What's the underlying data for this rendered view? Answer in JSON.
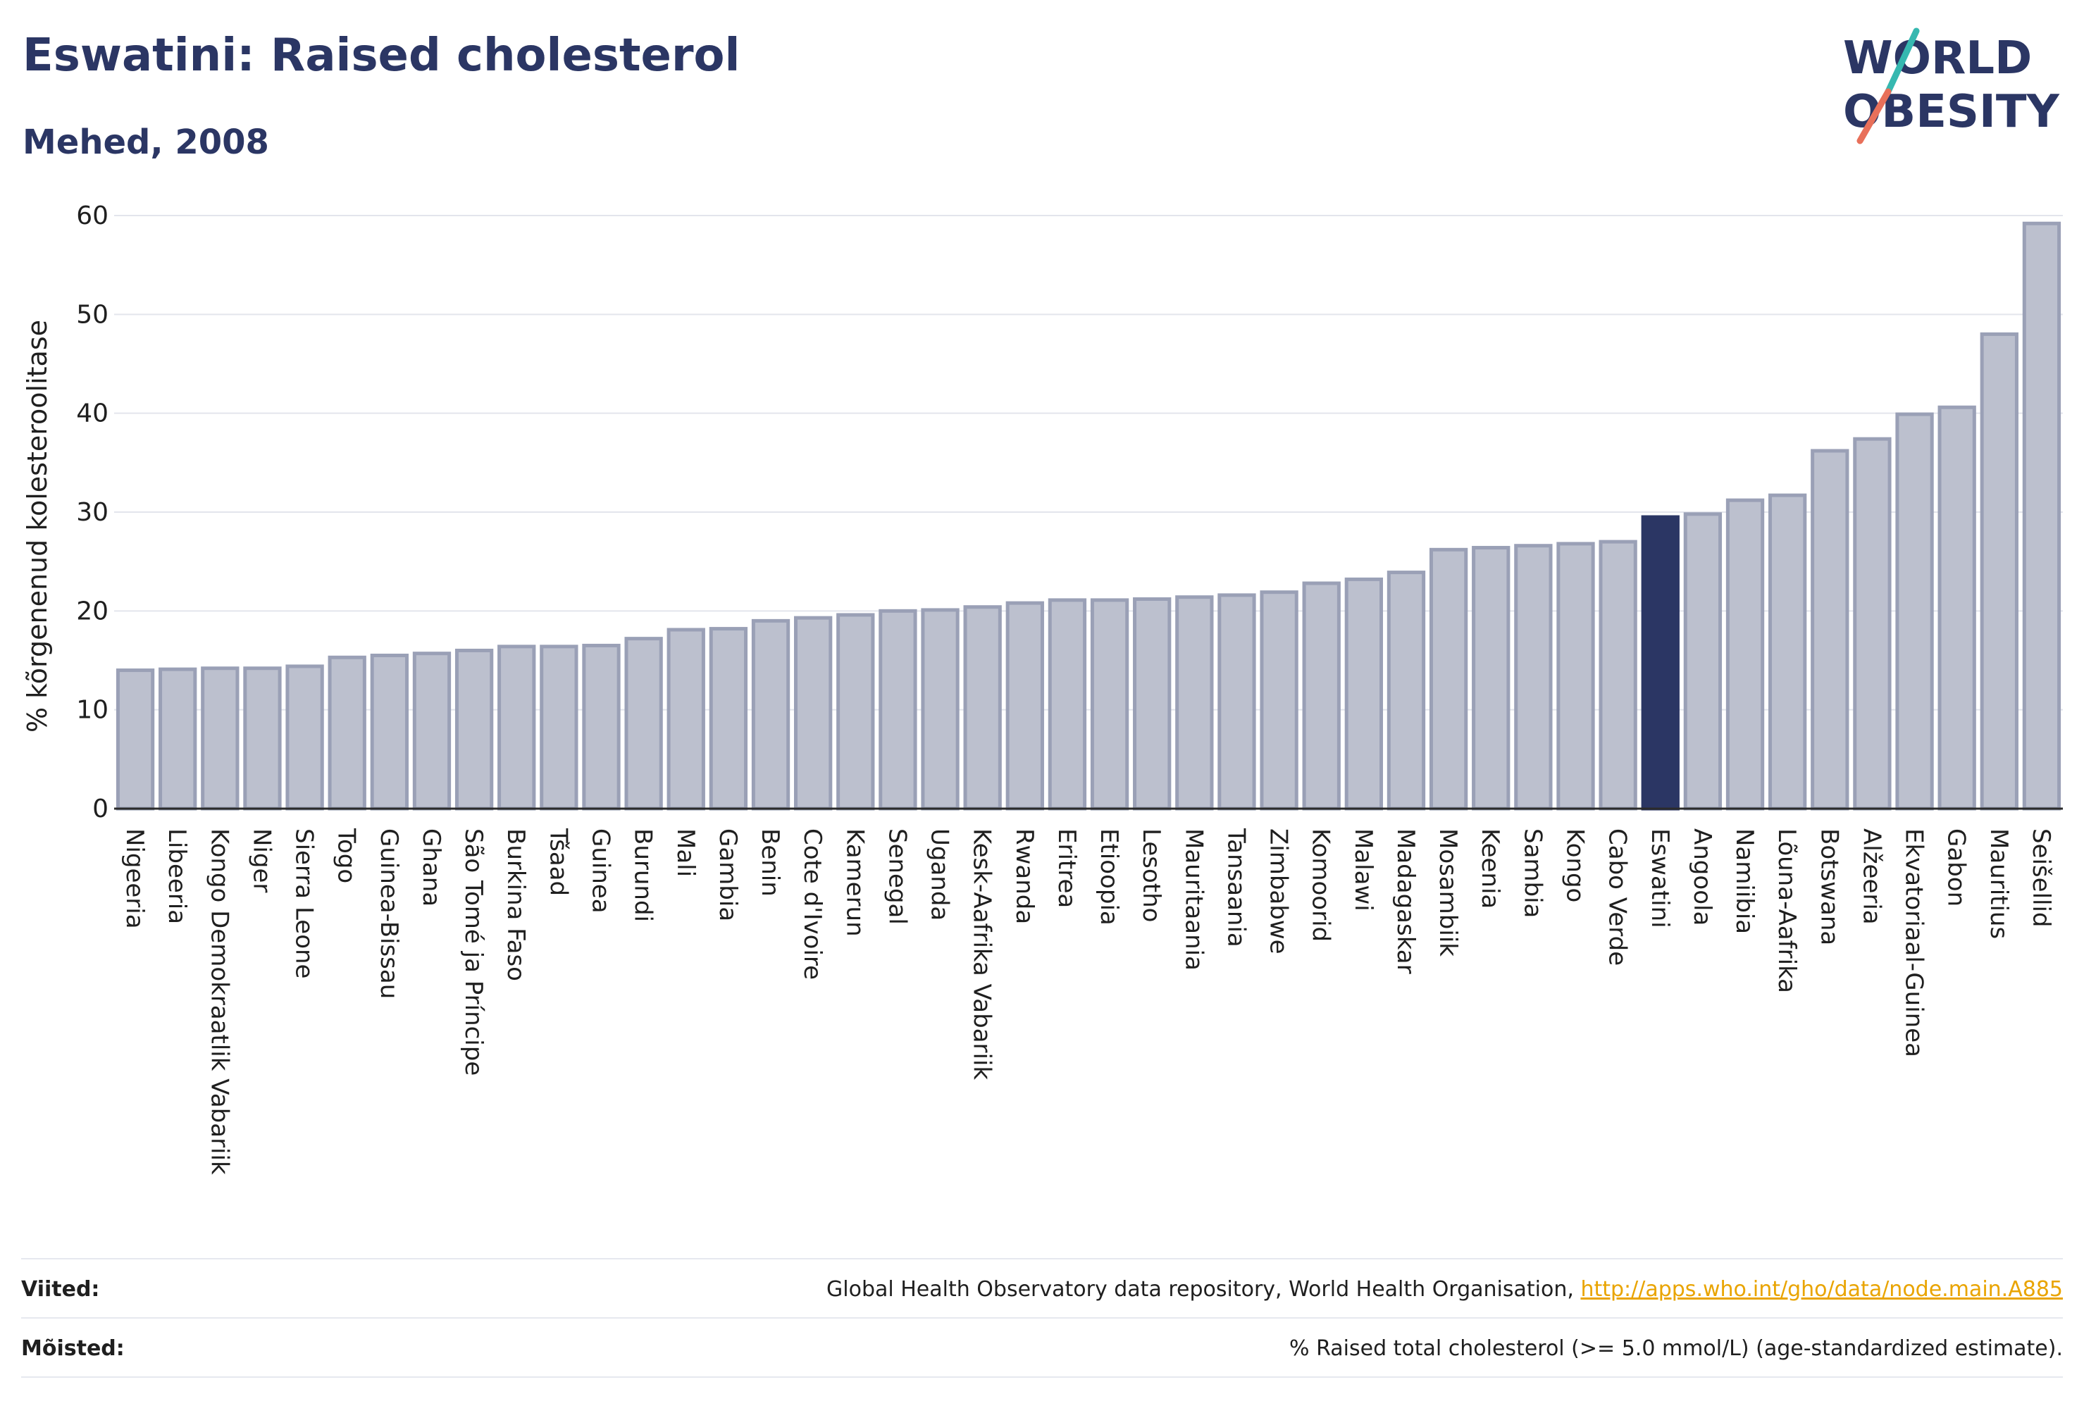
{
  "header": {
    "title": "Eswatini: Raised cholesterol",
    "subtitle": "Mehed, 2008"
  },
  "logo": {
    "line1": "WORLD",
    "line2": "OBESITY",
    "text_color": "#2b3664",
    "slash_color_top": "#36b8b0",
    "slash_color_bottom": "#e8705a"
  },
  "chart_data": {
    "type": "bar",
    "ylabel": "% kõrgenenud kolesteroolitase",
    "xlabel": "",
    "ylim": [
      0,
      60
    ],
    "yticks": [
      0,
      10,
      20,
      30,
      40,
      50,
      60
    ],
    "grid": true,
    "highlight": "Eswatini",
    "bar_color": "#bcc0ce",
    "bar_border_color": "#9aa0b6",
    "highlight_color": "#2b3664",
    "categories": [
      "Nigeeria",
      "Libeeria",
      "Kongo Demokraatlik Vabariik",
      "Niger",
      "Sierra Leone",
      "Togo",
      "Guinea-Bissau",
      "Ghana",
      "São Tomé ja Príncipe",
      "Burkina Faso",
      "Tšaad",
      "Guinea",
      "Burundi",
      "Mali",
      "Gambia",
      "Benin",
      "Cote d'Ivoire",
      "Kamerun",
      "Senegal",
      "Uganda",
      "Kesk-Aafrika Vabariik",
      "Rwanda",
      "Eritrea",
      "Etioopia",
      "Lesotho",
      "Mauritaania",
      "Tansaania",
      "Zimbabwe",
      "Komoorid",
      "Malawi",
      "Madagaskar",
      "Mosambiik",
      "Keenia",
      "Sambia",
      "Kongo",
      "Cabo Verde",
      "Eswatini",
      "Angoola",
      "Namiibia",
      "Lõuna-Aafrika",
      "Botswana",
      "Alžeeria",
      "Ekvatoriaal-Guinea",
      "Gabon",
      "Mauritius",
      "Seišellid"
    ],
    "values": [
      14.0,
      14.1,
      14.2,
      14.2,
      14.4,
      15.3,
      15.5,
      15.7,
      16.0,
      16.4,
      16.4,
      16.5,
      17.2,
      18.1,
      18.2,
      19.0,
      19.3,
      19.6,
      20.0,
      20.1,
      20.4,
      20.8,
      21.1,
      21.1,
      21.2,
      21.4,
      21.6,
      21.9,
      22.8,
      23.2,
      23.9,
      26.2,
      26.4,
      26.6,
      26.8,
      27.0,
      29.5,
      29.8,
      31.2,
      31.7,
      36.2,
      37.4,
      39.9,
      40.6,
      48.0,
      59.2
    ]
  },
  "footer": {
    "sources_label": "Viited:",
    "sources_text": "Global Health Observatory data repository, World Health Organisation, ",
    "sources_link": "http://apps.who.int/gho/data/node.main.A885",
    "definitions_label": "Mõisted:",
    "definitions_text": "% Raised total cholesterol (>= 5.0 mmol/L) (age-standardized estimate)."
  }
}
